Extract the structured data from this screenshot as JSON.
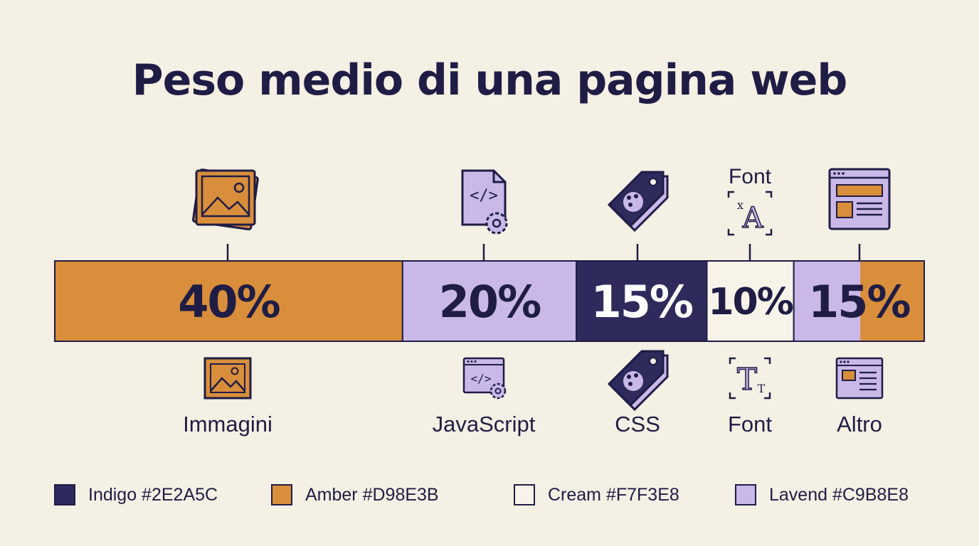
{
  "chart_data": {
    "type": "bar",
    "layout": "stacked-horizontal-100",
    "title": "Peso medio di una pagina web",
    "categories": [
      "Immagini",
      "JavaScript",
      "CSS",
      "Font",
      "Altro"
    ],
    "values": [
      40,
      20,
      15,
      10,
      15
    ],
    "value_labels": [
      "40%",
      "20%",
      "15%",
      "10%",
      "15%"
    ],
    "top_labels": [
      "",
      "",
      "",
      "Font",
      ""
    ],
    "icons_top": [
      "photo-stack-icon",
      "code-file-gear-icon",
      "palette-tag-icon",
      "font-translate-icon",
      "browser-window-icon"
    ],
    "icons_bottom": [
      "image-icon",
      "code-window-gear-icon",
      "palette-tag-icon",
      "text-font-icon",
      "browser-layout-icon"
    ],
    "segment_fills": [
      "#D98E3B",
      "#C9B8E8",
      "#2E2A5C",
      "#F7F3E8",
      "#C9B8E8"
    ],
    "segment_text_colors": [
      "#1F1D45",
      "#1F1D45",
      "#FFFFFF",
      "#1F1D45",
      "#1F1D45"
    ],
    "altro_split_fill": "#D98E3B",
    "legend": [
      {
        "label": "Indigo #2E2A5C",
        "color": "#2E2A5C"
      },
      {
        "label": "Amber #D98E3B",
        "color": "#D98E3B"
      },
      {
        "label": "Cream #F7F3E8",
        "color": "#F7F3E8"
      },
      {
        "label": "Lavend #C9B8E8",
        "color": "#C9B8E8"
      }
    ]
  }
}
